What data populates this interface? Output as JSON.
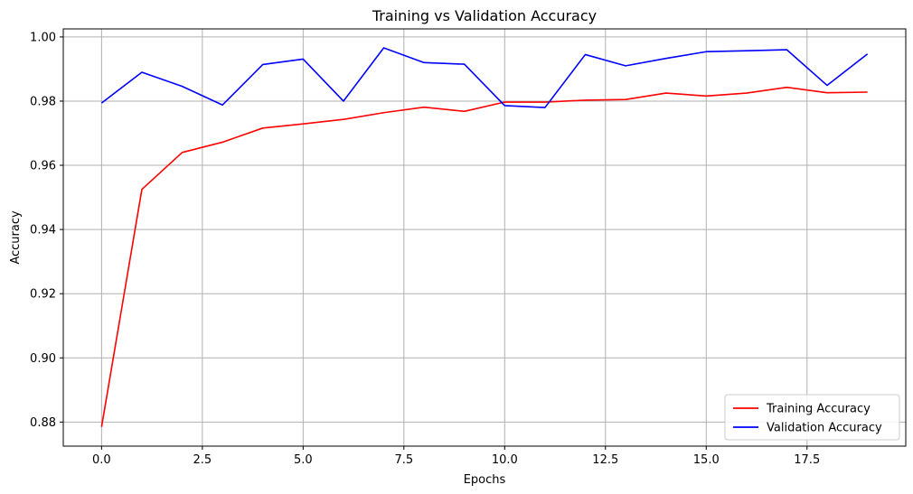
{
  "chart_data": {
    "type": "line",
    "title": "Training vs Validation Accuracy",
    "xlabel": "Epochs",
    "ylabel": "Accuracy",
    "xlim": [
      -0.95,
      19.95
    ],
    "ylim": [
      0.8725,
      1.0025
    ],
    "xticks": [
      0.0,
      2.5,
      5.0,
      7.5,
      10.0,
      12.5,
      15.0,
      17.5
    ],
    "xtick_labels": [
      "0.0",
      "2.5",
      "5.0",
      "7.5",
      "10.0",
      "12.5",
      "15.0",
      "17.5"
    ],
    "yticks": [
      0.88,
      0.9,
      0.92,
      0.94,
      0.96,
      0.98,
      1.0
    ],
    "ytick_labels": [
      "0.88",
      "0.90",
      "0.92",
      "0.94",
      "0.96",
      "0.98",
      "1.00"
    ],
    "grid": true,
    "legend_position": "lower-right",
    "x": [
      0,
      1,
      2,
      3,
      4,
      5,
      6,
      7,
      8,
      9,
      10,
      11,
      12,
      13,
      14,
      15,
      16,
      17,
      18,
      19
    ],
    "series": [
      {
        "name": "Training Accuracy",
        "color": "#ff0000",
        "values": [
          0.8785,
          0.9525,
          0.964,
          0.9672,
          0.9716,
          0.9729,
          0.9743,
          0.9764,
          0.9781,
          0.9768,
          0.9797,
          0.9797,
          0.9803,
          0.9805,
          0.9825,
          0.9816,
          0.9825,
          0.9843,
          0.9826,
          0.9828
        ]
      },
      {
        "name": "Validation Accuracy",
        "color": "#0000ff",
        "values": [
          0.9794,
          0.989,
          0.9846,
          0.9788,
          0.9914,
          0.9931,
          0.98,
          0.9966,
          0.992,
          0.9915,
          0.9786,
          0.978,
          0.9945,
          0.991,
          0.9933,
          0.9954,
          0.9957,
          0.996,
          0.9849,
          0.9947
        ]
      }
    ]
  }
}
